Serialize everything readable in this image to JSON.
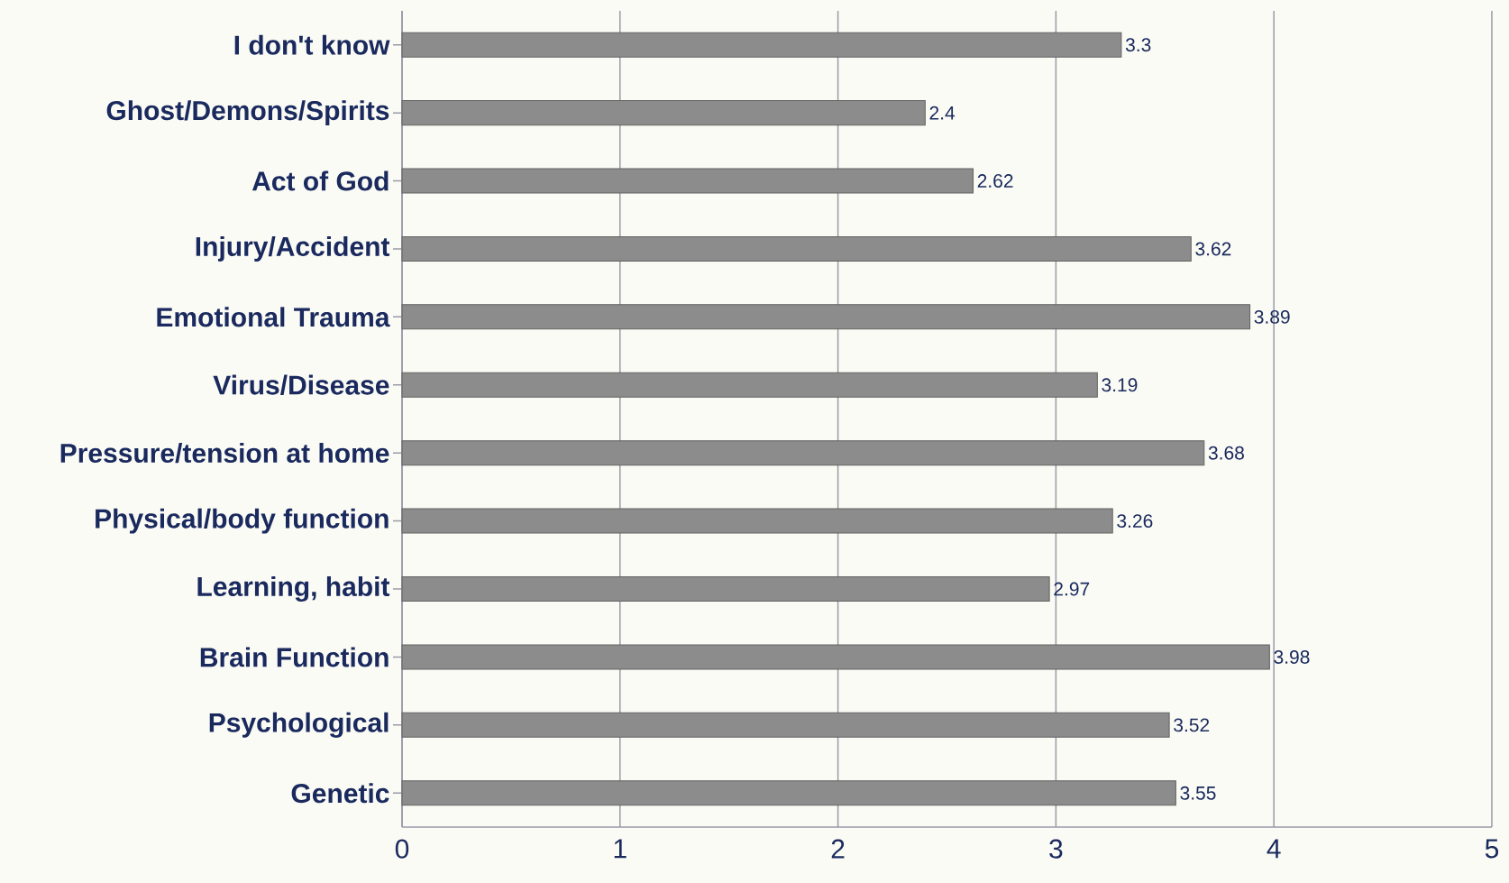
{
  "chart_data": {
    "type": "bar",
    "orientation": "horizontal",
    "categories": [
      "I don't know",
      "Ghost/Demons/Spirits",
      "Act of God",
      "Injury/Accident",
      "Emotional Trauma",
      "Virus/Disease",
      "Pressure/tension at home",
      "Physical/body function",
      "Learning, habit",
      "Brain Function",
      "Psychological",
      "Genetic"
    ],
    "values": [
      3.3,
      2.4,
      2.62,
      3.62,
      3.89,
      3.19,
      3.68,
      3.26,
      2.97,
      3.98,
      3.52,
      3.55
    ],
    "color": "#8c8c8c",
    "xlim": [
      0,
      5
    ],
    "xticks": [
      0,
      1,
      2,
      3,
      4,
      5
    ],
    "grid": "x",
    "data_labels": true
  }
}
